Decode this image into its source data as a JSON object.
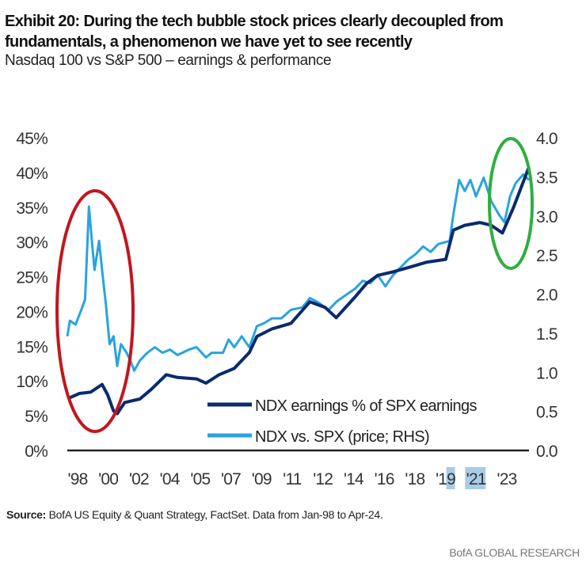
{
  "title": "Exhibit 20: During the tech bubble stock prices clearly decoupled from fundamentals, a phenomenon we have yet to see recently",
  "subtitle": "Nasdaq 100 vs S&P 500 – earnings & performance",
  "source_label": "Source:",
  "source_text": " BofA US Equity & Quant Strategy, FactSet. Data from Jan-98 to Apr-24.",
  "brand": "BofA GLOBAL RESEARCH",
  "chart_data": {
    "type": "line",
    "title": "Nasdaq 100 vs S&P 500 – earnings & performance",
    "x_range": [
      1998.0,
      2024.3
    ],
    "x_tick_labels": [
      "'98",
      "'00",
      "'02",
      "'04",
      "'05",
      "'07",
      "'09",
      "'11",
      "'12",
      "'14",
      "'16",
      "'18",
      "'19",
      "'21",
      "'23"
    ],
    "y_left": {
      "ylim": [
        0,
        45
      ],
      "tick_labels": [
        "0%",
        "5%",
        "10%",
        "15%",
        "20%",
        "25%",
        "30%",
        "35%",
        "40%",
        "45%"
      ],
      "ticks": [
        0,
        5,
        10,
        15,
        20,
        25,
        30,
        35,
        40,
        45
      ]
    },
    "y_right": {
      "ylim": [
        0,
        4
      ],
      "tick_labels": [
        "0.0",
        "0.5",
        "1.0",
        "1.5",
        "2.0",
        "2.5",
        "3.0",
        "3.5",
        "4.0"
      ],
      "ticks": [
        0,
        0.5,
        1,
        1.5,
        2,
        2.5,
        3,
        3.5,
        4
      ]
    },
    "grid": false,
    "legend_position": "bottom-right",
    "series": [
      {
        "name": "NDX earnings % of SPX earnings",
        "axis": "left",
        "color": "#0a2a6e",
        "x": [
          1998.15,
          1998.69,
          1999.33,
          1999.98,
          2000.3,
          2000.63,
          2000.84,
          2001.27,
          2002.13,
          2002.78,
          2003.64,
          2004.28,
          2005.36,
          2005.9,
          2006.65,
          2007.51,
          2008.37,
          2008.8,
          2009.66,
          2010.74,
          2011.82,
          2012.68,
          2013.32,
          2014.4,
          2015.04,
          2015.69,
          2016.55,
          2017.41,
          2018.49,
          2019.56,
          2019.99,
          2020.64,
          2021.5,
          2022.15,
          2022.79,
          2023.44,
          2024.3
        ],
        "y": [
          7.6,
          8.2,
          8.4,
          9.5,
          8.0,
          5.7,
          5.3,
          6.9,
          7.4,
          8.8,
          10.9,
          10.5,
          10.3,
          9.7,
          10.9,
          11.8,
          14.1,
          16.4,
          17.5,
          18.3,
          21.4,
          20.6,
          19.1,
          22.1,
          24.0,
          25.2,
          25.7,
          26.3,
          27.1,
          27.5,
          31.7,
          32.4,
          32.8,
          32.4,
          31.3,
          35.1,
          40.8
        ]
      },
      {
        "name": "NDX vs. SPX (price; RHS)",
        "axis": "right",
        "color": "#29a3e0",
        "x": [
          1998.0,
          1998.15,
          1998.47,
          1998.8,
          1999.01,
          1999.23,
          1999.44,
          1999.55,
          1999.81,
          1999.98,
          2000.2,
          2000.41,
          2000.63,
          2000.84,
          2001.06,
          2001.38,
          2001.59,
          2001.81,
          2002.13,
          2002.56,
          2002.99,
          2003.42,
          2003.85,
          2004.28,
          2004.93,
          2005.36,
          2005.9,
          2006.22,
          2006.87,
          2007.19,
          2007.51,
          2007.94,
          2008.37,
          2008.8,
          2009.23,
          2009.66,
          2010.2,
          2010.74,
          2011.39,
          2011.82,
          2012.25,
          2012.89,
          2013.32,
          2013.75,
          2014.4,
          2014.83,
          2015.26,
          2015.69,
          2016.12,
          2016.55,
          2016.98,
          2017.41,
          2017.84,
          2018.27,
          2018.7,
          2019.13,
          2019.78,
          2019.99,
          2020.32,
          2020.64,
          2020.96,
          2021.28,
          2021.72,
          2022.15,
          2022.58,
          2022.9,
          2023.22,
          2023.54,
          2023.97,
          2024.3
        ],
        "y": [
          1.46,
          1.66,
          1.61,
          1.8,
          1.93,
          3.12,
          2.58,
          2.31,
          2.68,
          2.31,
          1.86,
          1.36,
          1.46,
          1.08,
          1.36,
          1.25,
          1.15,
          1.02,
          1.15,
          1.25,
          1.32,
          1.25,
          1.29,
          1.22,
          1.29,
          1.32,
          1.19,
          1.25,
          1.25,
          1.42,
          1.32,
          1.46,
          1.32,
          1.59,
          1.63,
          1.69,
          1.69,
          1.8,
          1.83,
          1.95,
          1.9,
          1.8,
          1.9,
          1.97,
          2.07,
          2.17,
          2.14,
          2.24,
          2.1,
          2.24,
          2.34,
          2.44,
          2.51,
          2.61,
          2.54,
          2.64,
          2.68,
          3.02,
          3.46,
          3.32,
          3.46,
          3.25,
          3.49,
          3.19,
          3.02,
          2.92,
          3.25,
          3.42,
          3.53,
          3.46
        ]
      }
    ],
    "annotations": [
      {
        "shape": "ellipse",
        "color": "#c0171d",
        "around": "1998-2001"
      },
      {
        "shape": "ellipse",
        "color": "#2fae3f",
        "around": "2022-2024"
      }
    ]
  }
}
